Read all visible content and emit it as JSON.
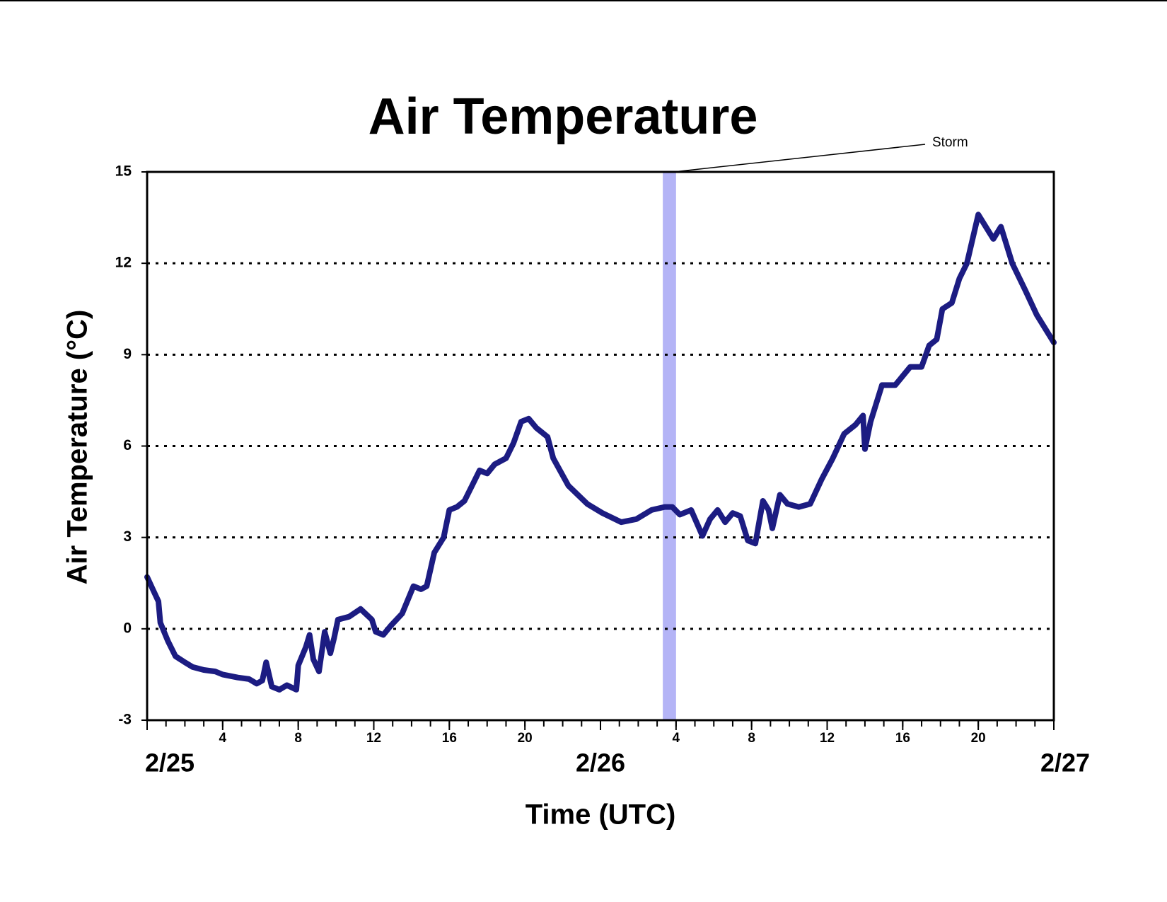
{
  "chart_data": {
    "type": "line",
    "title": "Air Temperature",
    "x_label": "Time (UTC)",
    "y_label": "Air Temperature (°C)",
    "xlim": [
      0,
      48
    ],
    "ylim": [
      -3,
      15
    ],
    "yticks": [
      -3,
      0,
      3,
      6,
      9,
      12,
      15
    ],
    "xticks": [
      4,
      8,
      12,
      16,
      20,
      {
        "value": 28,
        "label": "4"
      },
      {
        "value": 32,
        "label": "8"
      },
      {
        "value": 36,
        "label": "12"
      },
      {
        "value": 40,
        "label": "16"
      },
      {
        "value": 44,
        "label": "20"
      }
    ],
    "date_ticks": [
      {
        "value": 0,
        "label": "2/25"
      },
      {
        "value": 24,
        "label": "2/26"
      },
      {
        "value": 48,
        "label": "2/27"
      }
    ],
    "x_minor_tick_step": 1,
    "grid": true,
    "storm": {
      "label": "Storm",
      "x": [
        27.3,
        28.0
      ],
      "color": "#b4b4f6"
    },
    "series": [
      {
        "name": "Air Temperature",
        "color": "#1c1c82",
        "x": [
          0,
          0.3,
          0.6,
          0.7,
          1.1,
          1.5,
          2.0,
          2.4,
          3.0,
          3.6,
          4.0,
          4.8,
          5.4,
          5.8,
          6.1,
          6.3,
          6.6,
          7.0,
          7.4,
          7.9,
          8.0,
          8.4,
          8.6,
          8.8,
          9.1,
          9.4,
          9.7,
          9.9,
          10.1,
          10.7,
          11.3,
          11.9,
          12.1,
          12.5,
          12.9,
          13.5,
          14.1,
          14.5,
          14.8,
          15.2,
          15.7,
          16.0,
          16.4,
          16.8,
          17.2,
          17.6,
          18.0,
          18.4,
          19.0,
          19.4,
          19.8,
          20.2,
          20.6,
          21.2,
          21.5,
          22.3,
          23.3,
          24.1,
          25.1,
          25.9,
          26.7,
          27.4,
          27.8,
          28.2,
          28.8,
          29.4,
          29.8,
          30.2,
          30.6,
          31.0,
          31.4,
          31.8,
          32.2,
          32.4,
          32.6,
          32.9,
          33.1,
          33.5,
          33.9,
          34.5,
          35.1,
          35.7,
          36.3,
          36.9,
          37.5,
          37.9,
          38.0,
          38.3,
          38.9,
          39.6,
          40.4,
          41.0,
          41.4,
          41.8,
          42.1,
          42.6,
          43.0,
          43.4,
          44.0,
          44.4,
          44.8,
          45.2,
          45.8,
          46.5,
          47.1,
          48.0
        ],
        "values": [
          1.7,
          1.3,
          0.9,
          0.2,
          -0.4,
          -0.9,
          -1.1,
          -1.25,
          -1.35,
          -1.4,
          -1.5,
          -1.6,
          -1.65,
          -1.8,
          -1.7,
          -1.1,
          -1.9,
          -2.0,
          -1.85,
          -2.0,
          -1.2,
          -0.6,
          -0.2,
          -1.0,
          -1.4,
          -0.1,
          -0.8,
          -0.3,
          0.3,
          0.4,
          0.65,
          0.3,
          -0.1,
          -0.2,
          0.1,
          0.5,
          1.4,
          1.3,
          1.4,
          2.5,
          3.0,
          3.9,
          4.0,
          4.2,
          4.7,
          5.2,
          5.1,
          5.4,
          5.6,
          6.1,
          6.8,
          6.9,
          6.6,
          6.3,
          5.6,
          4.7,
          4.1,
          3.8,
          3.5,
          3.6,
          3.9,
          4.0,
          4.0,
          3.75,
          3.9,
          3.05,
          3.6,
          3.9,
          3.5,
          3.8,
          3.7,
          2.9,
          2.8,
          3.5,
          4.2,
          3.9,
          3.3,
          4.4,
          4.1,
          4.0,
          4.1,
          4.9,
          5.6,
          6.4,
          6.7,
          7.0,
          5.9,
          6.8,
          8.0,
          8.0,
          8.6,
          8.6,
          9.3,
          9.5,
          10.5,
          10.7,
          11.5,
          12.0,
          13.6,
          13.2,
          12.8,
          13.2,
          12.0,
          11.1,
          10.3,
          9.4
        ]
      }
    ]
  }
}
